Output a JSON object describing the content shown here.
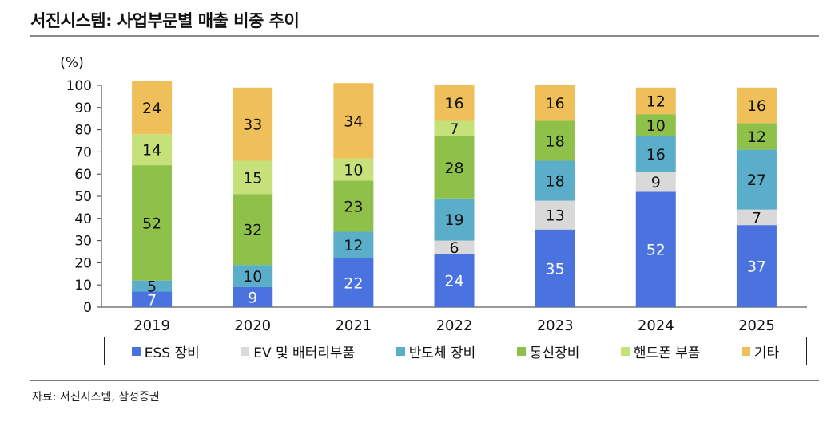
{
  "title": "서진시스템: 사업부문별 매출 비중 추이",
  "source": "자료: 서진시스템, 삼성증권",
  "chart_data": {
    "type": "bar",
    "stacked": true,
    "title": "서진시스템: 사업부문별 매출 비중 추이",
    "unit_label": "(%)",
    "ylim": [
      0,
      100
    ],
    "yticks": [
      0,
      10,
      20,
      30,
      40,
      50,
      60,
      70,
      80,
      90,
      100
    ],
    "categories": [
      "2019",
      "2020",
      "2021",
      "2022",
      "2023",
      "2024",
      "2025"
    ],
    "series": [
      {
        "name": "ESS 장비",
        "color": "#4a73e0",
        "label_color": "#ffffff",
        "values": [
          7,
          9,
          22,
          24,
          35,
          52,
          37
        ]
      },
      {
        "name": "EV 및 배터리부품",
        "color": "#d9d9d9",
        "label_color": "#111111",
        "values": [
          0,
          0,
          0,
          6,
          13,
          9,
          7
        ]
      },
      {
        "name": "반도체 장비",
        "color": "#5baec9",
        "label_color": "#111111",
        "values": [
          5,
          10,
          12,
          19,
          18,
          16,
          27
        ]
      },
      {
        "name": "통신장비",
        "color": "#8fc14a",
        "label_color": "#111111",
        "values": [
          52,
          32,
          23,
          28,
          18,
          10,
          12
        ]
      },
      {
        "name": "핸드폰 부품",
        "color": "#c6e07a",
        "label_color": "#111111",
        "values": [
          14,
          15,
          10,
          7,
          0,
          0,
          0
        ]
      },
      {
        "name": "기타",
        "color": "#efc05a",
        "label_color": "#111111",
        "values": [
          24,
          33,
          34,
          16,
          16,
          12,
          16
        ]
      }
    ],
    "grid": false,
    "legend_position": "bottom"
  }
}
